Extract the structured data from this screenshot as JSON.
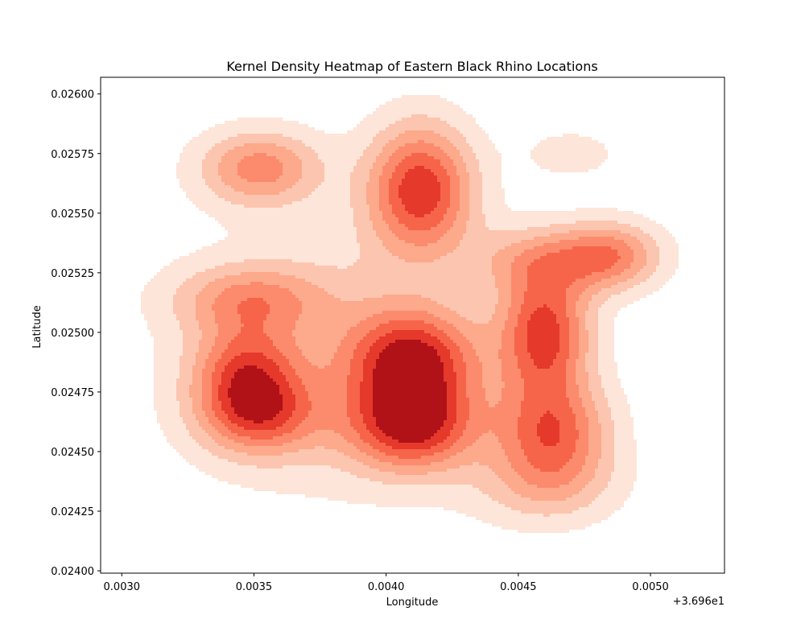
{
  "chart_data": {
    "type": "heatmap",
    "subtype": "kde-filled-contour",
    "title": "Kernel Density Heatmap of Eastern Black Rhino Locations",
    "xlabel": "Longitude",
    "ylabel": "Latitude",
    "x_offset_label": "+3.696e1",
    "xlim": [
      0.00292,
      0.00528
    ],
    "ylim": [
      0.02399,
      0.02607
    ],
    "x_ticks": [
      0.003,
      0.0035,
      0.004,
      0.0045,
      0.005
    ],
    "x_tick_labels": [
      "0.0030",
      "0.0035",
      "0.0040",
      "0.0045",
      "0.0050"
    ],
    "y_ticks": [
      0.024,
      0.02425,
      0.0245,
      0.02475,
      0.025,
      0.02525,
      0.0255,
      0.02575,
      0.026
    ],
    "y_tick_labels": [
      "0.02400",
      "0.02425",
      "0.02450",
      "0.02475",
      "0.02500",
      "0.02525",
      "0.02550",
      "0.02575",
      "0.02600"
    ],
    "grid": false,
    "colormap": "Reds",
    "level_colors": [
      "#fee5d9",
      "#fcc5af",
      "#fca98c",
      "#fb8b6c",
      "#f6654a",
      "#e5392c",
      "#b11218"
    ],
    "density_peaks": [
      {
        "x": 0.00352,
        "y": 0.02569,
        "sx": 0.00016,
        "sy": 0.00011,
        "w": 0.65
      },
      {
        "x": 0.00413,
        "y": 0.0256,
        "sx": 0.00014,
        "sy": 0.00019,
        "w": 1.0
      },
      {
        "x": 0.00484,
        "y": 0.02532,
        "sx": 0.00014,
        "sy": 0.0001,
        "w": 0.72
      },
      {
        "x": 0.00348,
        "y": 0.02514,
        "sx": 0.0002,
        "sy": 0.0001,
        "w": 0.5
      },
      {
        "x": 0.00347,
        "y": 0.02484,
        "sx": 0.00014,
        "sy": 0.00014,
        "w": 0.7
      },
      {
        "x": 0.00352,
        "y": 0.02465,
        "sx": 0.00016,
        "sy": 0.00012,
        "w": 0.7
      },
      {
        "x": 0.0041,
        "y": 0.02488,
        "sx": 0.00017,
        "sy": 0.00015,
        "w": 1.0
      },
      {
        "x": 0.0041,
        "y": 0.0246,
        "sx": 0.00017,
        "sy": 0.00013,
        "w": 0.95
      },
      {
        "x": 0.0046,
        "y": 0.025,
        "sx": 0.00012,
        "sy": 0.00018,
        "w": 0.95
      },
      {
        "x": 0.00463,
        "y": 0.02458,
        "sx": 0.00015,
        "sy": 0.00016,
        "w": 0.8
      },
      {
        "x": 0.00455,
        "y": 0.0253,
        "sx": 0.00016,
        "sy": 0.0001,
        "w": 0.4
      },
      {
        "x": 0.0047,
        "y": 0.02575,
        "sx": 0.00014,
        "sy": 8e-05,
        "w": 0.18
      },
      {
        "x": 0.0038,
        "y": 0.0249,
        "sx": 0.0004,
        "sy": 0.0004,
        "w": 0.3
      },
      {
        "x": 0.0046,
        "y": 0.02435,
        "sx": 0.0002,
        "sy": 0.00012,
        "w": 0.3
      }
    ]
  }
}
